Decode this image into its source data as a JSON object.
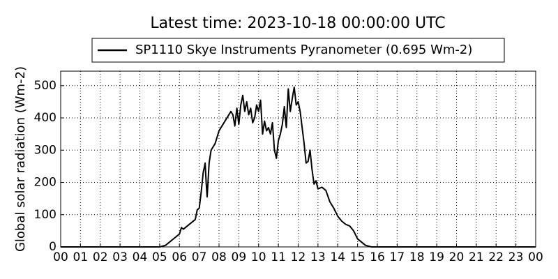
{
  "chart_data": {
    "type": "line",
    "title": "Latest time: 2023-10-18 00:00:00 UTC",
    "ylabel": "Global solar radiation (Wm-2)",
    "x": [
      0,
      1,
      2,
      3,
      4,
      5,
      5.3,
      5.5,
      5.8,
      6.0,
      6.1,
      6.2,
      6.4,
      6.6,
      6.8,
      6.9,
      7.0,
      7.1,
      7.2,
      7.3,
      7.35,
      7.4,
      7.5,
      7.6,
      7.8,
      8.0,
      8.2,
      8.4,
      8.6,
      8.7,
      8.8,
      8.9,
      9.0,
      9.1,
      9.2,
      9.3,
      9.4,
      9.5,
      9.6,
      9.7,
      9.8,
      9.9,
      10.0,
      10.1,
      10.2,
      10.3,
      10.4,
      10.5,
      10.6,
      10.7,
      10.8,
      10.9,
      11.0,
      11.1,
      11.2,
      11.3,
      11.4,
      11.5,
      11.6,
      11.7,
      11.8,
      11.9,
      12.0,
      12.1,
      12.2,
      12.3,
      12.4,
      12.5,
      12.6,
      12.7,
      12.8,
      12.9,
      13.0,
      13.2,
      13.4,
      13.6,
      13.8,
      14.0,
      14.2,
      14.4,
      14.6,
      14.8,
      15.0,
      15.2,
      15.4,
      15.7,
      16,
      18,
      20,
      22,
      24
    ],
    "series": [
      {
        "name": "SP1110 Skye Instruments Pyranometer (0.695 Wm-2)",
        "color": "#000000",
        "values": [
          0,
          0,
          0,
          0,
          0,
          0,
          5,
          15,
          30,
          40,
          60,
          55,
          65,
          75,
          85,
          115,
          120,
          170,
          230,
          260,
          200,
          155,
          260,
          300,
          320,
          360,
          380,
          400,
          420,
          410,
          375,
          430,
          380,
          440,
          470,
          420,
          450,
          410,
          430,
          385,
          400,
          440,
          420,
          455,
          350,
          390,
          360,
          370,
          350,
          385,
          300,
          275,
          330,
          350,
          380,
          435,
          370,
          490,
          420,
          460,
          495,
          440,
          450,
          420,
          370,
          320,
          260,
          265,
          300,
          240,
          195,
          205,
          180,
          185,
          175,
          140,
          120,
          95,
          80,
          70,
          65,
          50,
          25,
          15,
          5,
          0,
          0,
          0,
          0,
          0,
          0
        ]
      }
    ],
    "xlim": [
      0,
      24
    ],
    "xticks": [
      {
        "value": 0,
        "label": "00"
      },
      {
        "value": 1,
        "label": "01"
      },
      {
        "value": 2,
        "label": "02"
      },
      {
        "value": 3,
        "label": "03"
      },
      {
        "value": 4,
        "label": "04"
      },
      {
        "value": 5,
        "label": "05"
      },
      {
        "value": 6,
        "label": "06"
      },
      {
        "value": 7,
        "label": "07"
      },
      {
        "value": 8,
        "label": "08"
      },
      {
        "value": 9,
        "label": "09"
      },
      {
        "value": 10,
        "label": "10"
      },
      {
        "value": 11,
        "label": "11"
      },
      {
        "value": 12,
        "label": "12"
      },
      {
        "value": 13,
        "label": "13"
      },
      {
        "value": 14,
        "label": "14"
      },
      {
        "value": 15,
        "label": "15"
      },
      {
        "value": 16,
        "label": "16"
      },
      {
        "value": 17,
        "label": "17"
      },
      {
        "value": 18,
        "label": "18"
      },
      {
        "value": 19,
        "label": "19"
      },
      {
        "value": 20,
        "label": "20"
      },
      {
        "value": 21,
        "label": "21"
      },
      {
        "value": 22,
        "label": "22"
      },
      {
        "value": 23,
        "label": "23"
      },
      {
        "value": 24,
        "label": "00"
      }
    ],
    "ylim": [
      0,
      545
    ],
    "yticks": [
      0,
      100,
      200,
      300,
      400,
      500
    ],
    "grid": true
  }
}
